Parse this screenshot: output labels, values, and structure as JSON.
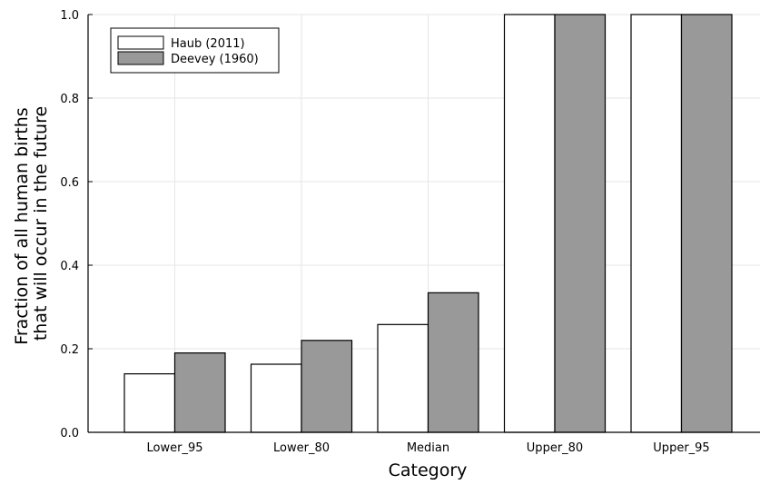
{
  "chart_data": {
    "type": "bar",
    "categories": [
      "Lower_95",
      "Lower_80",
      "Median",
      "Upper_80",
      "Upper_95"
    ],
    "series": [
      {
        "name": "Haub (2011)",
        "values": [
          0.14,
          0.163,
          0.258,
          1.0,
          1.0
        ],
        "color": "#ffffff"
      },
      {
        "name": "Deevey (1960)",
        "values": [
          0.19,
          0.22,
          0.334,
          1.0,
          1.0
        ],
        "color": "#999999"
      }
    ],
    "xlabel": "Category",
    "ylabel": [
      "Fraction of all human births",
      "that will occur in the future"
    ],
    "ylim": [
      0,
      1.0
    ],
    "yticks": [
      "0.0",
      "0.2",
      "0.4",
      "0.6",
      "0.8",
      "1.0"
    ],
    "grid": true,
    "legend_position": "top-left"
  }
}
